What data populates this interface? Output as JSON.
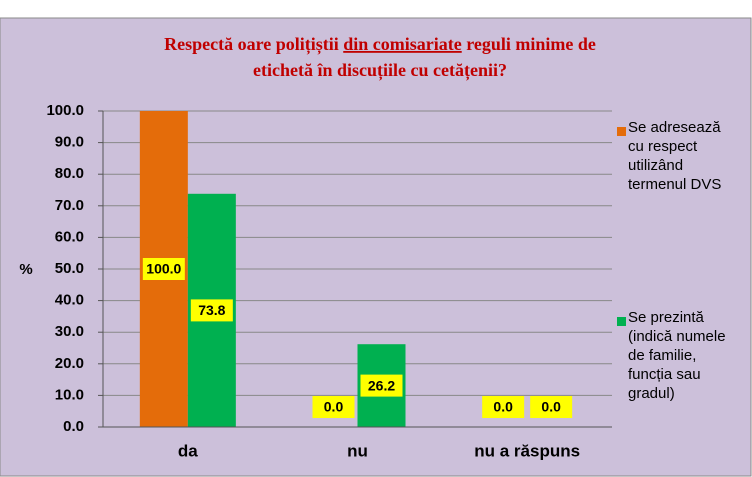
{
  "chart_data": {
    "type": "bar",
    "title": [
      "Respectă oare polițiștii ",
      "din comisariate",
      " reguli minime de",
      "etichetă în discuțiile cu cetățenii?"
    ],
    "y_label": "%",
    "categories": [
      "da",
      "nu",
      "nu a răspuns"
    ],
    "series": [
      {
        "name": "Se adresează cu respect utilizând termenul DVS",
        "color": "#e46c0a",
        "values": [
          100,
          0,
          0
        ],
        "value_labels": [
          "100.0",
          "0.0",
          "0.0"
        ]
      },
      {
        "name": "Se prezintă (indică numele de familie, funcția sau gradul)",
        "color": "#00b050",
        "values": [
          73.8,
          26.2,
          0
        ],
        "value_labels": [
          "73.8",
          "26.2",
          "0.0"
        ]
      }
    ],
    "ylim": [
      0,
      100
    ],
    "yticks": [
      {
        "value": 0,
        "label": "0.0"
      },
      {
        "value": 10,
        "label": "10.0"
      },
      {
        "value": 20,
        "label": "20.0"
      },
      {
        "value": 30,
        "label": "30.0"
      },
      {
        "value": 40,
        "label": "40.0"
      },
      {
        "value": 50,
        "label": "50.0"
      },
      {
        "value": 60,
        "label": "60.0"
      },
      {
        "value": 70,
        "label": "70.0"
      },
      {
        "value": 80,
        "label": "80.0"
      },
      {
        "value": 90,
        "label": "90.0"
      },
      {
        "value": 100,
        "label": "100.0"
      }
    ],
    "grid": true,
    "legend": "right"
  }
}
